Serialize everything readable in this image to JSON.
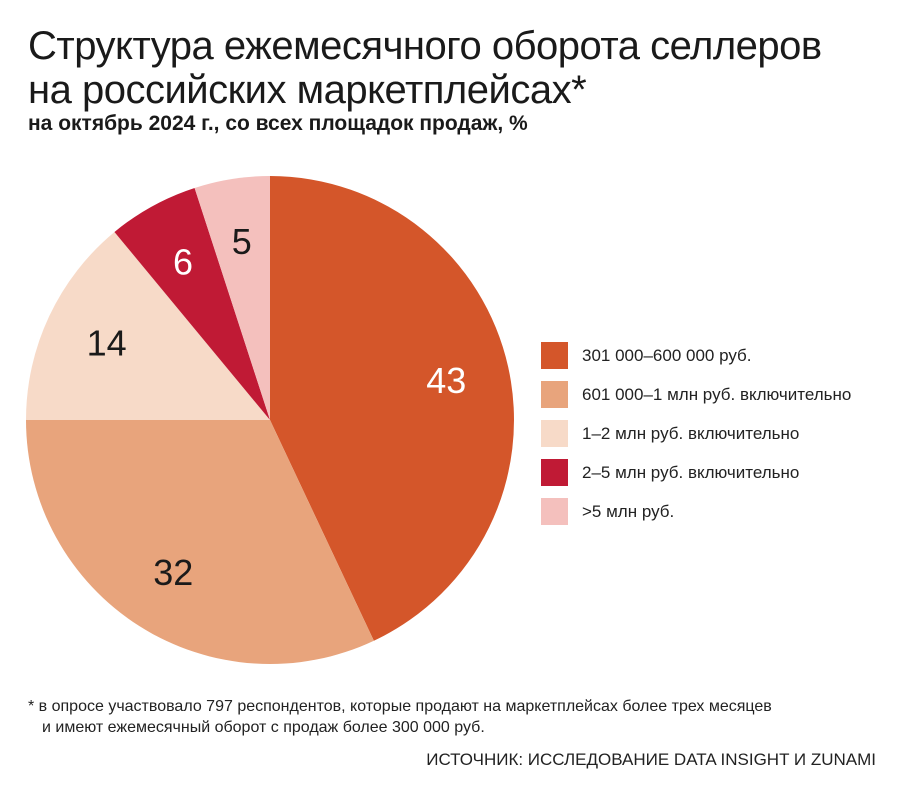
{
  "title_line1": "Структура ежемесячного оборота селлеров",
  "title_line2": "на российских маркетплейсах*",
  "subtitle": "на октябрь 2024 г., со всех площадок продаж, %",
  "chart_data": {
    "type": "pie",
    "title": "Структура ежемесячного оборота селлеров на российских маркетплейсах*",
    "subtitle": "на октябрь 2024 г., со всех площадок продаж, %",
    "start": "top, clockwise",
    "legend": "right",
    "slices": [
      {
        "label": "301 000–600 000 руб.",
        "value": 43,
        "value_label": "43",
        "color": "#d4562a",
        "label_color": "#ffffff"
      },
      {
        "label": "601 000–1 млн руб. включительно",
        "value": 32,
        "value_label": "32",
        "color": "#e8a47c",
        "label_color": "#1a1a1a"
      },
      {
        "label": "1–2 млн руб. включительно",
        "value": 14,
        "value_label": "14",
        "color": "#f7dac8",
        "label_color": "#1a1a1a"
      },
      {
        "label": "2–5 млн руб. включительно",
        "value": 6,
        "value_label": "6",
        "color": "#c01a35",
        "label_color": "#ffffff"
      },
      {
        "label": ">5 млн руб.",
        "value": 5,
        "value_label": "5",
        "color": "#f4c0bd",
        "label_color": "#1a1a1a"
      }
    ]
  },
  "footnote_line1": "* в опросе участвовало 797 респондентов, которые продают на маркетплейсах более трех месяцев",
  "footnote_line2": "и имеют ежемесячный оборот с продаж более 300 000 руб.",
  "source": "ИСТОЧНИК: ИССЛЕДОВАНИЕ DATA INSIGHT И ZUNAMI"
}
